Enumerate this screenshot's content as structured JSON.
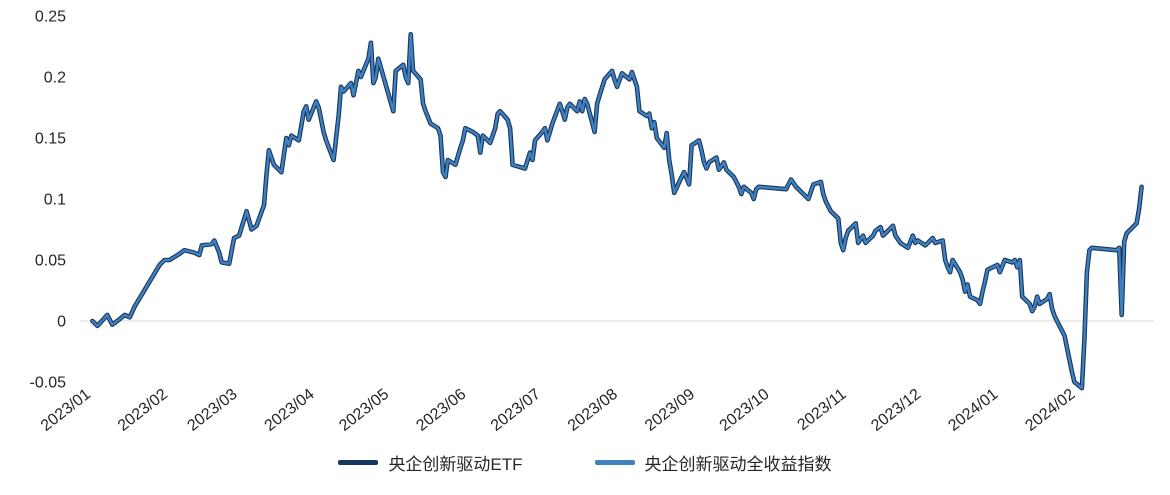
{
  "page": {
    "background": "#FFFFFF"
  },
  "chart_data": {
    "type": "line",
    "title": "",
    "xlabel": "",
    "ylabel": "",
    "grid": false,
    "legend_position": "bottom",
    "axis_color": "#D9D9D9",
    "tick_color": "#262626",
    "ylim": [
      -0.05,
      0.25
    ],
    "yticks": [
      -0.05,
      0,
      0.05,
      0.1,
      0.15,
      0.2,
      0.25
    ],
    "ytick_labels": [
      "-0.05",
      "0",
      "0.05",
      "0.1",
      "0.15",
      "0.2",
      "0.25"
    ],
    "xlim": [
      "2022-12-29",
      "2024-03-05"
    ],
    "xtick_dates": [
      "2023-01-01",
      "2023-02-01",
      "2023-03-01",
      "2023-04-01",
      "2023-05-01",
      "2023-06-01",
      "2023-07-01",
      "2023-08-01",
      "2023-09-01",
      "2023-10-01",
      "2023-11-01",
      "2023-12-01",
      "2024-01-01",
      "2024-02-01"
    ],
    "xtick_labels": [
      "2023/01",
      "2023/02",
      "2023/03",
      "2023/04",
      "2023/05",
      "2023/06",
      "2023/07",
      "2023/08",
      "2023/09",
      "2023/10",
      "2023/11",
      "2023/12",
      "2024/01",
      "2024/02"
    ],
    "x_dates": [
      "2023-01-03",
      "2023-01-05",
      "2023-01-09",
      "2023-01-11",
      "2023-01-13",
      "2023-01-16",
      "2023-01-18",
      "2023-01-20",
      "2023-01-30",
      "2023-02-01",
      "2023-02-03",
      "2023-02-07",
      "2023-02-09",
      "2023-02-13",
      "2023-02-15",
      "2023-02-16",
      "2023-02-20",
      "2023-02-21",
      "2023-02-23",
      "2023-02-24",
      "2023-02-27",
      "2023-03-01",
      "2023-03-03",
      "2023-03-06",
      "2023-03-08",
      "2023-03-10",
      "2023-03-13",
      "2023-03-14",
      "2023-03-15",
      "2023-03-16",
      "2023-03-17",
      "2023-03-20",
      "2023-03-22",
      "2023-03-23",
      "2023-03-24",
      "2023-03-27",
      "2023-03-29",
      "2023-03-30",
      "2023-03-31",
      "2023-04-03",
      "2023-04-04",
      "2023-04-06",
      "2023-04-07",
      "2023-04-10",
      "2023-04-11",
      "2023-04-12",
      "2023-04-13",
      "2023-04-14",
      "2023-04-17",
      "2023-04-18",
      "2023-04-20",
      "2023-04-21",
      "2023-04-24",
      "2023-04-25",
      "2023-04-26",
      "2023-04-27",
      "2023-04-28",
      "2023-05-04",
      "2023-05-05",
      "2023-05-08",
      "2023-05-09",
      "2023-05-10",
      "2023-05-11",
      "2023-05-12",
      "2023-05-15",
      "2023-05-16",
      "2023-05-17",
      "2023-05-19",
      "2023-05-22",
      "2023-05-23",
      "2023-05-24",
      "2023-05-25",
      "2023-05-26",
      "2023-05-29",
      "2023-05-31",
      "2023-06-01",
      "2023-06-02",
      "2023-06-05",
      "2023-06-07",
      "2023-06-08",
      "2023-06-09",
      "2023-06-12",
      "2023-06-14",
      "2023-06-15",
      "2023-06-16",
      "2023-06-19",
      "2023-06-20",
      "2023-06-21",
      "2023-06-26",
      "2023-06-28",
      "2023-06-29",
      "2023-06-30",
      "2023-07-03",
      "2023-07-04",
      "2023-07-05",
      "2023-07-07",
      "2023-07-10",
      "2023-07-11",
      "2023-07-12",
      "2023-07-13",
      "2023-07-14",
      "2023-07-17",
      "2023-07-18",
      "2023-07-19",
      "2023-07-20",
      "2023-07-21",
      "2023-07-24",
      "2023-07-25",
      "2023-07-26",
      "2023-07-28",
      "2023-07-31",
      "2023-08-01",
      "2023-08-02",
      "2023-08-04",
      "2023-08-07",
      "2023-08-08",
      "2023-08-09",
      "2023-08-10",
      "2023-08-11",
      "2023-08-14",
      "2023-08-15",
      "2023-08-16",
      "2023-08-17",
      "2023-08-18",
      "2023-08-21",
      "2023-08-22",
      "2023-08-23",
      "2023-08-24",
      "2023-08-25",
      "2023-08-28",
      "2023-08-29",
      "2023-08-31",
      "2023-09-01",
      "2023-09-04",
      "2023-09-05",
      "2023-09-06",
      "2023-09-07",
      "2023-09-08",
      "2023-09-11",
      "2023-09-12",
      "2023-09-14",
      "2023-09-15",
      "2023-09-18",
      "2023-09-20",
      "2023-09-21",
      "2023-09-22",
      "2023-09-25",
      "2023-09-26",
      "2023-09-27",
      "2023-09-28",
      "2023-10-09",
      "2023-10-10",
      "2023-10-11",
      "2023-10-13",
      "2023-10-16",
      "2023-10-18",
      "2023-10-20",
      "2023-10-23",
      "2023-10-24",
      "2023-10-25",
      "2023-10-27",
      "2023-10-30",
      "2023-10-31",
      "2023-11-01",
      "2023-11-02",
      "2023-11-03",
      "2023-11-06",
      "2023-11-07",
      "2023-11-09",
      "2023-11-10",
      "2023-11-13",
      "2023-11-14",
      "2023-11-16",
      "2023-11-17",
      "2023-11-21",
      "2023-11-22",
      "2023-11-24",
      "2023-11-27",
      "2023-11-29",
      "2023-11-30",
      "2023-12-01",
      "2023-12-04",
      "2023-12-06",
      "2023-12-07",
      "2023-12-08",
      "2023-12-11",
      "2023-12-12",
      "2023-12-13",
      "2023-12-14",
      "2023-12-15",
      "2023-12-18",
      "2023-12-19",
      "2023-12-20",
      "2023-12-21",
      "2023-12-22",
      "2023-12-25",
      "2023-12-26",
      "2023-12-27",
      "2023-12-28",
      "2023-12-29",
      "2024-01-02",
      "2024-01-03",
      "2024-01-05",
      "2024-01-08",
      "2024-01-09",
      "2024-01-10",
      "2024-01-11",
      "2024-01-12",
      "2024-01-15",
      "2024-01-16",
      "2024-01-17",
      "2024-01-18",
      "2024-01-19",
      "2024-01-22",
      "2024-01-23",
      "2024-01-24",
      "2024-01-25",
      "2024-01-26",
      "2024-01-29",
      "2024-01-30",
      "2024-01-31",
      "2024-02-01",
      "2024-02-02",
      "2024-02-05",
      "2024-02-06",
      "2024-02-07",
      "2024-02-08",
      "2024-02-09",
      "2024-02-19",
      "2024-02-20",
      "2024-02-21",
      "2024-02-22",
      "2024-02-23",
      "2024-02-26",
      "2024-02-27",
      "2024-02-28",
      "2024-02-29"
    ],
    "series": [
      {
        "name": "央企创新驱动ETF",
        "color": "#17375E",
        "line_width": 4.6,
        "values": [
          0,
          -0.004,
          0.005,
          -0.003,
          0,
          0.005,
          0.003,
          0.012,
          0.046,
          0.05,
          0.05,
          0.055,
          0.058,
          0.056,
          0.054,
          0.062,
          0.063,
          0.066,
          0.056,
          0.048,
          0.047,
          0.068,
          0.07,
          0.09,
          0.075,
          0.078,
          0.095,
          0.12,
          0.14,
          0.134,
          0.128,
          0.122,
          0.15,
          0.144,
          0.152,
          0.148,
          0.172,
          0.176,
          0.165,
          0.18,
          0.175,
          0.155,
          0.148,
          0.132,
          0.15,
          0.168,
          0.192,
          0.188,
          0.195,
          0.185,
          0.205,
          0.2,
          0.215,
          0.228,
          0.195,
          0.2,
          0.215,
          0.172,
          0.205,
          0.21,
          0.2,
          0.195,
          0.235,
          0.205,
          0.198,
          0.178,
          0.172,
          0.162,
          0.158,
          0.152,
          0.122,
          0.118,
          0.132,
          0.128,
          0.142,
          0.148,
          0.158,
          0.155,
          0.152,
          0.138,
          0.152,
          0.146,
          0.158,
          0.17,
          0.172,
          0.165,
          0.158,
          0.128,
          0.125,
          0.138,
          0.132,
          0.148,
          0.155,
          0.158,
          0.148,
          0.162,
          0.178,
          0.172,
          0.165,
          0.175,
          0.178,
          0.172,
          0.18,
          0.172,
          0.182,
          0.178,
          0.155,
          0.178,
          0.185,
          0.198,
          0.205,
          0.198,
          0.192,
          0.203,
          0.198,
          0.204,
          0.198,
          0.192,
          0.172,
          0.168,
          0.17,
          0.158,
          0.163,
          0.15,
          0.142,
          0.154,
          0.132,
          0.12,
          0.105,
          0.118,
          0.122,
          0.112,
          0.144,
          0.148,
          0.14,
          0.13,
          0.125,
          0.13,
          0.134,
          0.124,
          0.13,
          0.124,
          0.118,
          0.11,
          0.104,
          0.11,
          0.105,
          0.1,
          0.108,
          0.11,
          0.108,
          0.112,
          0.116,
          0.11,
          0.104,
          0.1,
          0.112,
          0.114,
          0.104,
          0.098,
          0.09,
          0.084,
          0.064,
          0.058,
          0.068,
          0.074,
          0.08,
          0.064,
          0.07,
          0.064,
          0.07,
          0.074,
          0.077,
          0.07,
          0.078,
          0.07,
          0.064,
          0.06,
          0.07,
          0.064,
          0.066,
          0.062,
          0.066,
          0.068,
          0.064,
          0.066,
          0.05,
          0.044,
          0.04,
          0.05,
          0.04,
          0.034,
          0.024,
          0.03,
          0.02,
          0.017,
          0.014,
          0.024,
          0.032,
          0.042,
          0.046,
          0.04,
          0.05,
          0.048,
          0.05,
          0.044,
          0.05,
          0.02,
          0.014,
          0.008,
          0.012,
          0.02,
          0.014,
          0.018,
          0.022,
          0.01,
          0.004,
          0,
          -0.012,
          -0.022,
          -0.032,
          -0.042,
          -0.05,
          -0.055,
          -0.015,
          0.04,
          0.058,
          0.06,
          0.058,
          0.06,
          0.005,
          0.065,
          0.072,
          0.078,
          0.08,
          0.092,
          0.11
        ]
      },
      {
        "name": "央企创新驱动全收益指数",
        "color": "#4080BF",
        "line_width": 2.4,
        "values": [
          0,
          -0.004,
          0.005,
          -0.003,
          0,
          0.005,
          0.003,
          0.012,
          0.046,
          0.05,
          0.05,
          0.055,
          0.058,
          0.056,
          0.054,
          0.062,
          0.063,
          0.066,
          0.056,
          0.048,
          0.047,
          0.068,
          0.07,
          0.09,
          0.075,
          0.078,
          0.095,
          0.12,
          0.14,
          0.134,
          0.128,
          0.122,
          0.15,
          0.144,
          0.152,
          0.148,
          0.172,
          0.176,
          0.165,
          0.18,
          0.175,
          0.155,
          0.148,
          0.132,
          0.15,
          0.168,
          0.192,
          0.188,
          0.195,
          0.185,
          0.205,
          0.2,
          0.215,
          0.228,
          0.195,
          0.2,
          0.215,
          0.172,
          0.205,
          0.21,
          0.2,
          0.195,
          0.235,
          0.205,
          0.198,
          0.178,
          0.172,
          0.162,
          0.158,
          0.152,
          0.122,
          0.118,
          0.132,
          0.128,
          0.142,
          0.148,
          0.158,
          0.155,
          0.152,
          0.138,
          0.152,
          0.146,
          0.158,
          0.17,
          0.172,
          0.165,
          0.158,
          0.128,
          0.125,
          0.138,
          0.132,
          0.148,
          0.155,
          0.158,
          0.148,
          0.162,
          0.178,
          0.172,
          0.165,
          0.175,
          0.178,
          0.172,
          0.18,
          0.172,
          0.182,
          0.178,
          0.155,
          0.178,
          0.185,
          0.198,
          0.205,
          0.198,
          0.192,
          0.203,
          0.198,
          0.204,
          0.198,
          0.192,
          0.172,
          0.168,
          0.17,
          0.158,
          0.163,
          0.15,
          0.142,
          0.154,
          0.132,
          0.12,
          0.105,
          0.118,
          0.122,
          0.112,
          0.144,
          0.148,
          0.14,
          0.13,
          0.125,
          0.13,
          0.134,
          0.124,
          0.13,
          0.124,
          0.118,
          0.11,
          0.104,
          0.11,
          0.105,
          0.1,
          0.108,
          0.11,
          0.108,
          0.112,
          0.116,
          0.11,
          0.104,
          0.1,
          0.112,
          0.114,
          0.104,
          0.098,
          0.09,
          0.084,
          0.064,
          0.058,
          0.068,
          0.074,
          0.08,
          0.064,
          0.07,
          0.064,
          0.07,
          0.074,
          0.077,
          0.07,
          0.078,
          0.07,
          0.064,
          0.06,
          0.07,
          0.064,
          0.066,
          0.062,
          0.066,
          0.068,
          0.064,
          0.066,
          0.05,
          0.044,
          0.04,
          0.05,
          0.04,
          0.034,
          0.024,
          0.03,
          0.02,
          0.017,
          0.014,
          0.024,
          0.032,
          0.042,
          0.046,
          0.04,
          0.05,
          0.048,
          0.05,
          0.044,
          0.05,
          0.02,
          0.014,
          0.008,
          0.012,
          0.02,
          0.014,
          0.018,
          0.022,
          0.01,
          0.004,
          0,
          -0.012,
          -0.022,
          -0.032,
          -0.042,
          -0.05,
          -0.055,
          -0.015,
          0.04,
          0.058,
          0.06,
          0.058,
          0.06,
          0.005,
          0.065,
          0.072,
          0.078,
          0.08,
          0.092,
          0.11
        ]
      }
    ]
  }
}
